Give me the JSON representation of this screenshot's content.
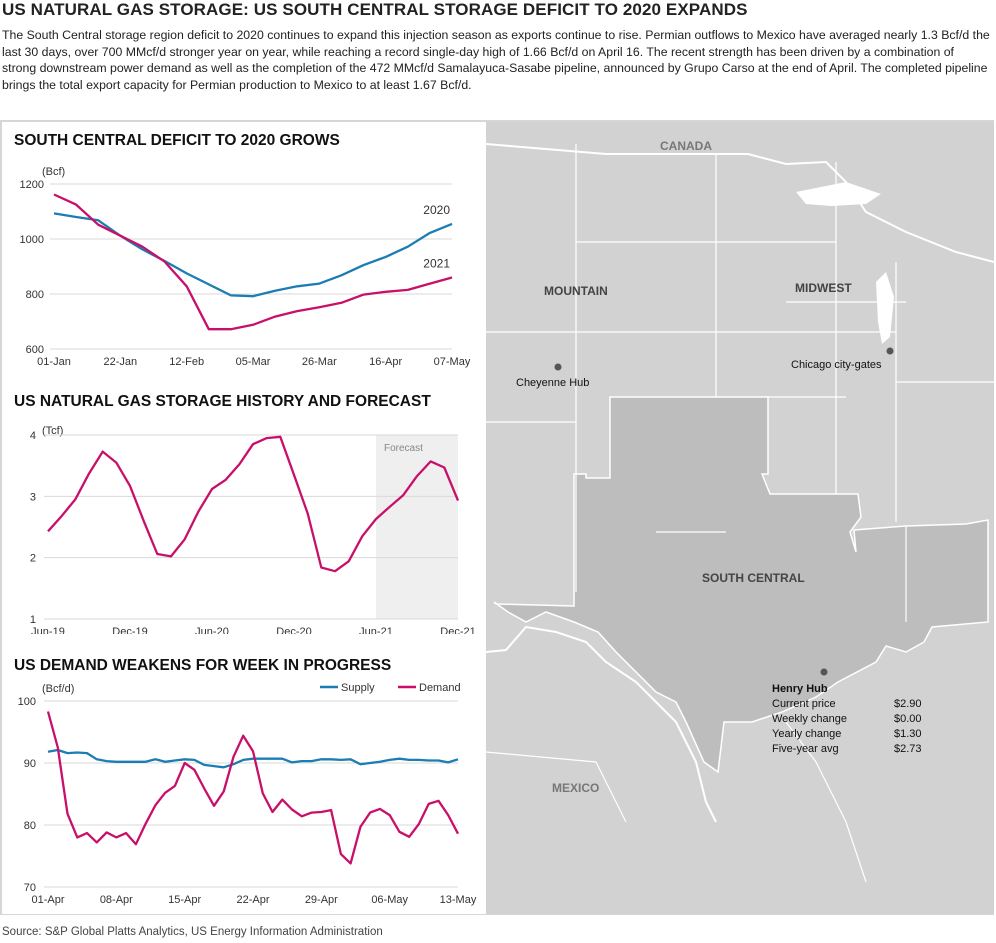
{
  "header": {
    "title": "US NATURAL GAS STORAGE: US SOUTH CENTRAL STORAGE DEFICIT TO 2020 EXPANDS",
    "intro": "The South Central storage region deficit to 2020 continues to expand this injection season as exports continue to rise. Permian outflows to Mexico have averaged nearly 1.3 Bcf/d the last 30 days, over 700 MMcf/d stronger year on year, while reaching a record single-day high of 1.66 Bcf/d on April 16. The recent strength has been driven by a combination of strong downstream power demand as well as the completion of the 472 MMcf/d Samalayuca-Sasabe pipeline, announced by Grupo Carso at the end of April. The completed pipeline brings the total export capacity for Permian production to Mexico to at least 1.67 Bcf/d."
  },
  "source": "Source: S&P Global Platts Analytics, US Energy Information Administration",
  "colors": {
    "blue": "#1b7db3",
    "magenta": "#c8106a",
    "map_region": "#bdbdbd",
    "map_land": "#d2d2d2",
    "border": "#ffffff"
  },
  "chart_data": [
    {
      "type": "line",
      "title": "SOUTH CENTRAL DEFICIT TO 2020 GROWS",
      "unit": "(Bcf)",
      "ylim": [
        600,
        1200
      ],
      "yticks": [
        "600",
        "800",
        "1000",
        "1200"
      ],
      "xticks": [
        "01-Jan",
        "22-Jan",
        "12-Feb",
        "05-Mar",
        "26-Mar",
        "16-Apr",
        "07-May"
      ],
      "x_range": [
        0,
        18
      ],
      "series": [
        {
          "name": "2020",
          "color": "#1b7db3",
          "x": [
            0,
            1,
            2,
            3,
            4,
            5,
            6,
            7,
            8,
            9,
            10,
            11,
            12,
            13,
            14,
            15,
            16,
            17,
            18
          ],
          "values": [
            1093,
            1080,
            1068,
            1012,
            962,
            920,
            875,
            835,
            795,
            792,
            812,
            828,
            838,
            868,
            905,
            935,
            972,
            1022,
            1055
          ]
        },
        {
          "name": "2021",
          "color": "#c8106a",
          "x": [
            0,
            1,
            2,
            3,
            4,
            5,
            6,
            7,
            8,
            9,
            10,
            11,
            12,
            13,
            14,
            15,
            16,
            17,
            18
          ],
          "values": [
            1162,
            1125,
            1052,
            1012,
            972,
            918,
            828,
            672,
            672,
            688,
            718,
            738,
            752,
            768,
            798,
            808,
            815,
            838,
            860
          ]
        }
      ]
    },
    {
      "type": "line",
      "title": "US NATURAL GAS STORAGE HISTORY AND FORECAST",
      "unit": "(Tcf)",
      "ylim": [
        1,
        4
      ],
      "yticks": [
        "1",
        "2",
        "3",
        "4"
      ],
      "xticks": [
        "Jun-19",
        "Dec-19",
        "Jun-20",
        "Dec-20",
        "Jun-21",
        "Dec-21"
      ],
      "x_range": [
        0,
        30
      ],
      "forecast_label": "Forecast",
      "forecast_start": 24,
      "series": [
        {
          "name": "",
          "color": "#c8106a",
          "x": [
            0,
            1,
            2,
            3,
            4,
            5,
            6,
            7,
            8,
            9,
            10,
            11,
            12,
            13,
            14,
            15,
            16,
            17,
            18,
            19,
            20,
            21,
            22,
            23,
            24,
            25,
            26,
            27,
            28,
            29,
            30
          ],
          "values": [
            2.43,
            2.68,
            2.95,
            3.37,
            3.73,
            3.55,
            3.17,
            2.6,
            2.06,
            2.02,
            2.3,
            2.75,
            3.12,
            3.27,
            3.52,
            3.85,
            3.95,
            3.97,
            3.35,
            2.72,
            1.84,
            1.78,
            1.94,
            2.35,
            2.63,
            2.83,
            3.02,
            3.33,
            3.57,
            3.47,
            2.93
          ]
        }
      ]
    },
    {
      "type": "line",
      "title": "US DEMAND WEAKENS FOR WEEK IN PROGRESS",
      "unit": "(Bcf/d)",
      "ylim": [
        70,
        100
      ],
      "yticks": [
        "70",
        "80",
        "90",
        "100"
      ],
      "xticks": [
        "01-Apr",
        "08-Apr",
        "15-Apr",
        "22-Apr",
        "29-Apr",
        "06-May",
        "13-May"
      ],
      "x_range": [
        0,
        42
      ],
      "series": [
        {
          "name": "Supply",
          "color": "#1b7db3",
          "x": [
            0,
            1,
            2,
            3,
            4,
            5,
            6,
            7,
            8,
            9,
            10,
            11,
            12,
            13,
            14,
            15,
            16,
            17,
            18,
            19,
            20,
            21,
            22,
            23,
            24,
            25,
            26,
            27,
            28,
            29,
            30,
            31,
            32,
            33,
            34,
            35,
            36,
            37,
            38,
            39,
            40,
            41,
            42
          ],
          "values": [
            91.8,
            92.1,
            91.6,
            91.7,
            91.6,
            90.6,
            90.3,
            90.2,
            90.2,
            90.2,
            90.2,
            90.6,
            90.2,
            90.4,
            90.6,
            90.5,
            89.7,
            89.5,
            89.3,
            89.8,
            90.5,
            90.7,
            90.7,
            90.7,
            90.7,
            90.1,
            90.3,
            90.3,
            90.6,
            90.6,
            90.5,
            90.6,
            89.8,
            90.0,
            90.2,
            90.5,
            90.7,
            90.5,
            90.5,
            90.4,
            90.4,
            90.1,
            90.6
          ]
        },
        {
          "name": "Demand",
          "color": "#c8106a",
          "x": [
            0,
            1,
            2,
            3,
            4,
            5,
            6,
            7,
            8,
            9,
            10,
            11,
            12,
            13,
            14,
            15,
            16,
            17,
            18,
            19,
            20,
            21,
            22,
            23,
            24,
            25,
            26,
            27,
            28,
            29,
            30,
            31,
            32,
            33,
            34,
            35,
            36,
            37,
            38,
            39,
            40,
            41,
            42
          ],
          "values": [
            98.3,
            92.5,
            81.8,
            78.0,
            78.7,
            77.2,
            78.8,
            78.0,
            78.7,
            76.9,
            80.2,
            83.2,
            85.2,
            86.3,
            90.0,
            88.9,
            85.9,
            83.1,
            85.4,
            91.0,
            94.4,
            91.9,
            85.1,
            82.1,
            84.1,
            82.5,
            81.4,
            82.0,
            82.1,
            82.4,
            75.3,
            73.8,
            79.7,
            82.0,
            82.6,
            81.6,
            78.9,
            78.1,
            80.2,
            83.4,
            83.9,
            81.6,
            78.6
          ]
        }
      ]
    }
  ],
  "map": {
    "country_labels": [
      "CANADA",
      "MEXICO"
    ],
    "region_labels": [
      "MOUNTAIN",
      "MIDWEST",
      "SOUTH CENTRAL"
    ],
    "hubs": [
      "Cheyenne Hub",
      "Chicago city-gates",
      "Henry Hub"
    ],
    "henry_hub_table": [
      {
        "label": "Current price",
        "value": "$2.90"
      },
      {
        "label": "Weekly change",
        "value": "$0.00"
      },
      {
        "label": "Yearly change",
        "value": "$1.30"
      },
      {
        "label": "Five-year avg",
        "value": "$2.73"
      }
    ]
  }
}
